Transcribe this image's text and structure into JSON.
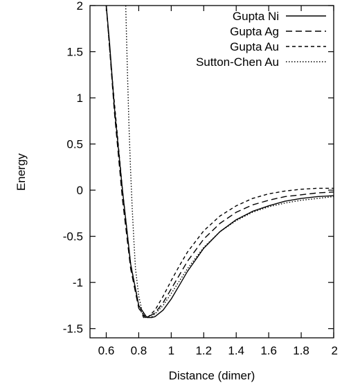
{
  "chart_data": {
    "type": "line",
    "title": "",
    "xlabel": "Distance (dimer)",
    "ylabel": "Energy",
    "xlim": [
      0.5,
      2.0
    ],
    "ylim": [
      -1.6,
      2.0
    ],
    "grid": false,
    "legend_position": "top-right",
    "x_ticks": [
      {
        "value": 0.6,
        "label": "0.6"
      },
      {
        "value": 0.8,
        "label": "0.8"
      },
      {
        "value": 1.0,
        "label": "1"
      },
      {
        "value": 1.2,
        "label": "1.2"
      },
      {
        "value": 1.4,
        "label": "1.4"
      },
      {
        "value": 1.6,
        "label": "1.6"
      },
      {
        "value": 1.8,
        "label": "1.8"
      },
      {
        "value": 2.0,
        "label": "2"
      }
    ],
    "y_ticks": [
      {
        "value": 2.0,
        "label": "2"
      },
      {
        "value": 1.5,
        "label": "1.5"
      },
      {
        "value": 1.0,
        "label": "1"
      },
      {
        "value": 0.5,
        "label": "0.5"
      },
      {
        "value": 0.0,
        "label": "0"
      },
      {
        "value": -0.5,
        "label": "-0.5"
      },
      {
        "value": -1.0,
        "label": "-1"
      },
      {
        "value": -1.5,
        "label": "-1.5"
      }
    ],
    "series": [
      {
        "name": "Gupta Ni",
        "dash": "solid",
        "x": [
          0.6,
          0.62,
          0.65,
          0.7,
          0.75,
          0.8,
          0.85,
          0.88,
          0.9,
          0.95,
          1.0,
          1.05,
          1.1,
          1.2,
          1.3,
          1.4,
          1.5,
          1.6,
          1.7,
          1.8,
          1.9,
          2.0
        ],
        "y": [
          2.0,
          1.6,
          0.9,
          0.0,
          -0.8,
          -1.25,
          -1.38,
          -1.38,
          -1.37,
          -1.3,
          -1.18,
          -1.03,
          -0.88,
          -0.63,
          -0.45,
          -0.32,
          -0.23,
          -0.17,
          -0.12,
          -0.09,
          -0.07,
          -0.06
        ]
      },
      {
        "name": "Gupta Ag",
        "dash": "longdash",
        "x": [
          0.6,
          0.62,
          0.65,
          0.7,
          0.75,
          0.8,
          0.84,
          0.87,
          0.9,
          0.95,
          1.0,
          1.05,
          1.1,
          1.2,
          1.3,
          1.4,
          1.5,
          1.6,
          1.7,
          1.8,
          1.9,
          2.0
        ],
        "y": [
          2.0,
          1.55,
          0.85,
          -0.1,
          -0.85,
          -1.28,
          -1.38,
          -1.36,
          -1.33,
          -1.22,
          -1.07,
          -0.92,
          -0.77,
          -0.53,
          -0.36,
          -0.24,
          -0.16,
          -0.11,
          -0.07,
          -0.05,
          -0.03,
          -0.02
        ]
      },
      {
        "name": "Gupta Au",
        "dash": "shortdash",
        "x": [
          0.6,
          0.62,
          0.65,
          0.7,
          0.75,
          0.8,
          0.83,
          0.86,
          0.9,
          0.95,
          1.0,
          1.05,
          1.1,
          1.2,
          1.3,
          1.4,
          1.5,
          1.6,
          1.7,
          1.8,
          1.9,
          2.0
        ],
        "y": [
          2.0,
          1.55,
          0.95,
          0.0,
          -0.8,
          -1.25,
          -1.38,
          -1.37,
          -1.3,
          -1.15,
          -0.98,
          -0.82,
          -0.67,
          -0.44,
          -0.28,
          -0.17,
          -0.09,
          -0.04,
          -0.01,
          0.01,
          0.02,
          0.02
        ]
      },
      {
        "name": "Sutton-Chen Au",
        "dash": "dotted",
        "x": [
          0.72,
          0.73,
          0.74,
          0.75,
          0.76,
          0.77,
          0.78,
          0.8,
          0.82,
          0.84,
          0.86,
          0.88,
          0.9,
          0.95,
          1.0,
          1.1,
          1.2,
          1.3,
          1.4,
          1.5,
          1.6,
          1.7,
          1.8,
          1.9,
          2.0
        ],
        "y": [
          2.0,
          1.3,
          0.7,
          0.2,
          -0.2,
          -0.55,
          -0.85,
          -1.15,
          -1.3,
          -1.37,
          -1.38,
          -1.37,
          -1.34,
          -1.25,
          -1.12,
          -0.85,
          -0.62,
          -0.45,
          -0.33,
          -0.24,
          -0.18,
          -0.14,
          -0.11,
          -0.09,
          -0.07
        ]
      }
    ]
  }
}
